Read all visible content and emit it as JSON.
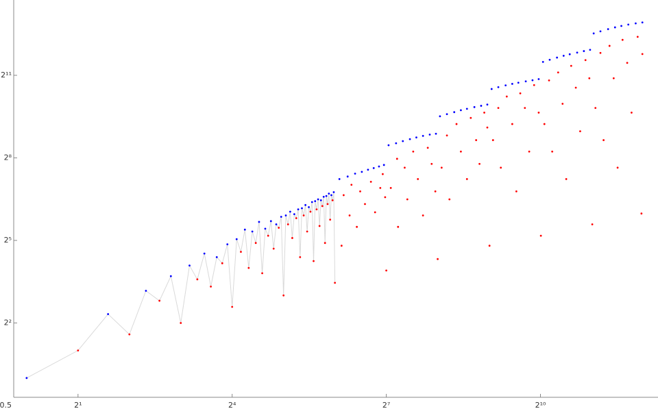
{
  "chart_data": {
    "type": "scatter",
    "log_base": 2,
    "line_color": "#d9d9d9",
    "xlim": [
      0.84,
      5000
    ],
    "ylim": [
      0.5,
      13650
    ],
    "xticks": [
      {
        "value": 2,
        "label": "2¹"
      },
      {
        "value": 16,
        "label": "2⁴"
      },
      {
        "value": 128,
        "label": "2⁷"
      },
      {
        "value": 1024,
        "label": "2¹⁰"
      }
    ],
    "yticks": [
      0.5,
      {
        "value": 4,
        "label": "2²"
      },
      {
        "value": 32,
        "label": "2⁵"
      },
      {
        "value": 256,
        "label": "2⁸"
      },
      {
        "value": 2048,
        "label": "2¹¹"
      }
    ],
    "series": [
      {
        "color": "#0000ff",
        "joined": true,
        "x": [
          1,
          3,
          5,
          7,
          9,
          11,
          13,
          15,
          17,
          19,
          21,
          23,
          25,
          27,
          29,
          31,
          33,
          35,
          37,
          39,
          41,
          43,
          45,
          47,
          49,
          51,
          53,
          55,
          57,
          59,
          61,
          63
        ],
        "values": [
          1,
          5,
          9,
          13,
          17,
          23,
          21,
          29,
          33,
          42,
          40,
          51,
          43,
          52,
          48,
          58,
          60,
          66,
          62,
          70,
          72,
          78,
          74,
          84,
          86,
          90,
          88,
          96,
          98,
          104,
          100,
          108
        ]
      },
      {
        "color": "#ff0000",
        "joined": true,
        "x": [
          2,
          4,
          6,
          8,
          10,
          12,
          14,
          16,
          18,
          20,
          22,
          24,
          26,
          28,
          30,
          32,
          34,
          36,
          38,
          40,
          42,
          44,
          46,
          48,
          50,
          52,
          54,
          56,
          58,
          60,
          62,
          64
        ],
        "values": [
          2,
          3,
          7,
          4,
          12,
          10,
          18,
          6,
          24,
          16,
          30,
          14,
          36,
          26,
          44,
          8,
          48,
          34,
          56,
          21,
          60,
          40,
          66,
          19,
          70,
          46,
          76,
          30,
          80,
          54,
          88,
          11
        ]
      },
      {
        "color": "#0000ff",
        "x": [
          68,
          76,
          84,
          92,
          100,
          108,
          116,
          124,
          132,
          146,
          160,
          176,
          192,
          210,
          230,
          250,
          264,
          290,
          320,
          350,
          380,
          420,
          460,
          500,
          530,
          580,
          640,
          700,
          760,
          840,
          920,
          1000,
          1060,
          1160,
          1280,
          1400,
          1520,
          1680,
          1840,
          2000,
          2100,
          2300,
          2550,
          2800,
          3050,
          3350,
          3700,
          4050
        ],
        "values": [
          150,
          160,
          172,
          180,
          190,
          198,
          206,
          214,
          352,
          370,
          390,
          410,
          428,
          445,
          460,
          470,
          730,
          770,
          810,
          850,
          880,
          920,
          950,
          980,
          1450,
          1520,
          1590,
          1650,
          1700,
          1760,
          1810,
          1860,
          2870,
          3030,
          3200,
          3350,
          3480,
          3630,
          3770,
          3890,
          5880,
          6200,
          6550,
          6850,
          7100,
          7350,
          7580,
          7760
        ]
      },
      {
        "color": "#ff0000",
        "x": [
          70,
          72,
          78,
          80,
          86,
          90,
          96,
          104,
          110,
          118,
          122,
          126,
          128,
          136,
          148,
          150,
          164,
          170,
          184,
          196,
          210,
          224,
          236,
          248,
          256,
          270,
          290,
          300,
          330,
          350,
          380,
          400,
          430,
          450,
          480,
          500,
          515,
          540,
          580,
          600,
          650,
          700,
          740,
          780,
          830,
          880,
          940,
          1000,
          1030,
          1080,
          1150,
          1200,
          1300,
          1380,
          1450,
          1550,
          1650,
          1750,
          1880,
          1980,
          2060,
          2150,
          2300,
          2400,
          2600,
          2750,
          2900,
          3100,
          3300,
          3500,
          3800,
          4000,
          4050
        ],
        "values": [
          28,
          100,
          60,
          130,
          45,
          110,
          80,
          140,
          65,
          120,
          170,
          95,
          15,
          120,
          250,
          45,
          200,
          90,
          300,
          150,
          60,
          330,
          220,
          110,
          20,
          200,
          450,
          90,
          600,
          300,
          150,
          700,
          400,
          220,
          800,
          550,
          28,
          400,
          900,
          200,
          1200,
          600,
          110,
          1300,
          900,
          300,
          1600,
          800,
          36,
          600,
          1800,
          300,
          2200,
          1000,
          150,
          2600,
          1500,
          500,
          3000,
          1900,
          48,
          900,
          3600,
          400,
          4300,
          1900,
          200,
          5000,
          2800,
          800,
          5400,
          63,
          3500
        ]
      }
    ]
  }
}
